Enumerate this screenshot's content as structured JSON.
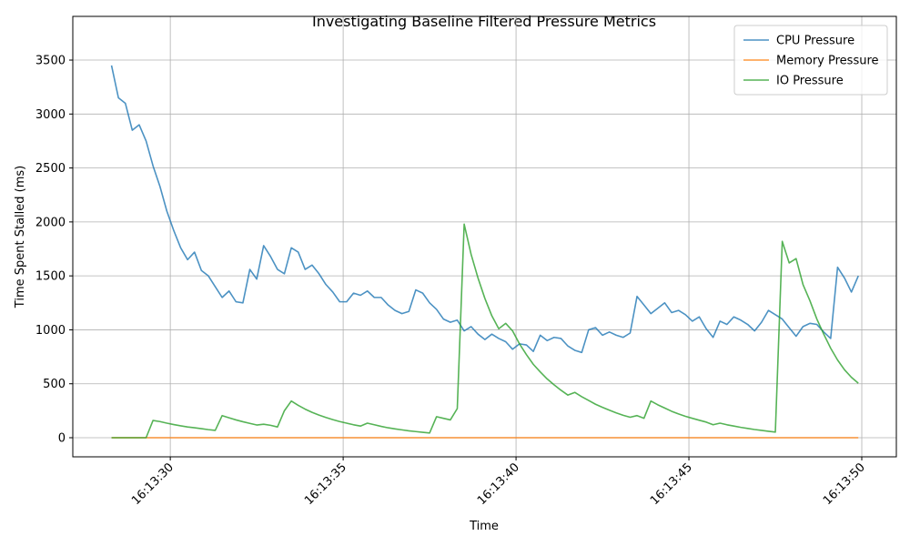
{
  "chart_data": {
    "type": "line",
    "title": "Investigating Baseline Filtered Pressure Metrics",
    "x_label": "Time",
    "y_label": "Time Spent Stalled (ms)",
    "x": [
      28.3,
      28.5,
      28.7,
      28.9,
      29.1,
      29.3,
      29.5,
      29.7,
      29.9,
      30.1,
      30.3,
      30.5,
      30.7,
      30.9,
      31.1,
      31.3,
      31.5,
      31.7,
      31.9,
      32.1,
      32.3,
      32.5,
      32.7,
      32.9,
      33.1,
      33.3,
      33.5,
      33.7,
      33.9,
      34.1,
      34.3,
      34.5,
      34.7,
      34.9,
      35.1,
      35.3,
      35.5,
      35.7,
      35.9,
      36.1,
      36.3,
      36.5,
      36.7,
      36.9,
      37.1,
      37.3,
      37.5,
      37.7,
      37.9,
      38.1,
      38.3,
      38.5,
      38.7,
      38.9,
      39.1,
      39.3,
      39.5,
      39.7,
      39.9,
      40.1,
      40.3,
      40.5,
      40.7,
      40.9,
      41.1,
      41.3,
      41.5,
      41.7,
      41.9,
      42.1,
      42.3,
      42.5,
      42.7,
      42.9,
      43.1,
      43.3,
      43.5,
      43.7,
      43.9,
      44.1,
      44.3,
      44.5,
      44.7,
      44.9,
      45.1,
      45.3,
      45.5,
      45.7,
      45.9,
      46.1,
      46.3,
      46.5,
      46.7,
      46.9,
      47.1,
      47.3,
      47.5,
      47.7,
      47.9,
      48.1,
      48.3,
      48.5,
      48.7,
      48.9,
      49.1,
      49.3,
      49.5,
      49.7,
      49.9
    ],
    "series": [
      {
        "name": "CPU Pressure",
        "color": "#1f77b4",
        "values": [
          3450,
          3150,
          3100,
          2850,
          2900,
          2750,
          2520,
          2330,
          2100,
          1920,
          1760,
          1650,
          1720,
          1550,
          1500,
          1400,
          1300,
          1360,
          1260,
          1250,
          1560,
          1470,
          1780,
          1680,
          1560,
          1520,
          1760,
          1720,
          1560,
          1600,
          1520,
          1420,
          1350,
          1260,
          1260,
          1340,
          1320,
          1360,
          1300,
          1300,
          1230,
          1180,
          1150,
          1170,
          1370,
          1340,
          1250,
          1190,
          1100,
          1070,
          1090,
          990,
          1030,
          960,
          910,
          960,
          920,
          890,
          820,
          870,
          860,
          800,
          950,
          900,
          930,
          920,
          850,
          810,
          790,
          1000,
          1020,
          950,
          980,
          950,
          930,
          970,
          1310,
          1230,
          1150,
          1200,
          1250,
          1160,
          1180,
          1140,
          1080,
          1120,
          1010,
          930,
          1080,
          1050,
          1120,
          1090,
          1050,
          990,
          1070,
          1180,
          1140,
          1100,
          1020,
          940,
          1030,
          1060,
          1050,
          980,
          920,
          1580,
          1480,
          1350,
          1500
        ]
      },
      {
        "name": "Memory Pressure",
        "color": "#ff7f0e",
        "values": [
          0,
          0,
          0,
          0,
          0,
          0,
          0,
          0,
          0,
          0,
          0,
          0,
          0,
          0,
          0,
          0,
          0,
          0,
          0,
          0,
          0,
          0,
          0,
          0,
          0,
          0,
          0,
          0,
          0,
          0,
          0,
          0,
          0,
          0,
          0,
          0,
          0,
          0,
          0,
          0,
          0,
          0,
          0,
          0,
          0,
          0,
          0,
          0,
          0,
          0,
          0,
          0,
          0,
          0,
          0,
          0,
          0,
          0,
          0,
          0,
          0,
          0,
          0,
          0,
          0,
          0,
          0,
          0,
          0,
          0,
          0,
          0,
          0,
          0,
          0,
          0,
          0,
          0,
          0,
          0,
          0,
          0,
          0,
          0,
          0,
          0,
          0,
          0,
          0,
          0,
          0,
          0,
          0,
          0,
          0,
          0,
          0,
          0,
          0,
          0,
          0,
          0,
          0,
          0,
          0,
          0,
          0,
          0,
          0
        ]
      },
      {
        "name": "IO Pressure",
        "color": "#2ca02c",
        "values": [
          0,
          0,
          0,
          0,
          0,
          0,
          160,
          150,
          135,
          122,
          110,
          100,
          92,
          84,
          75,
          68,
          205,
          185,
          165,
          148,
          133,
          118,
          125,
          115,
          100,
          250,
          340,
          300,
          265,
          235,
          210,
          188,
          168,
          150,
          135,
          120,
          108,
          135,
          120,
          105,
          92,
          82,
          73,
          64,
          57,
          50,
          44,
          195,
          180,
          165,
          270,
          1980,
          1700,
          1480,
          1290,
          1130,
          1010,
          1060,
          990,
          870,
          770,
          680,
          610,
          545,
          490,
          440,
          395,
          420,
          380,
          345,
          310,
          282,
          255,
          230,
          208,
          190,
          205,
          180,
          340,
          305,
          275,
          245,
          220,
          198,
          180,
          162,
          145,
          120,
          135,
          120,
          108,
          96,
          86,
          76,
          68,
          60,
          52,
          1820,
          1620,
          1660,
          1420,
          1270,
          1100,
          960,
          830,
          720,
          630,
          560,
          505
        ]
      }
    ],
    "alpha": 0.8,
    "xlim": [
      27.18,
      51.0
    ],
    "xticks": [
      {
        "value": 30,
        "label": "16:13:30"
      },
      {
        "value": 35,
        "label": "16:13:35"
      },
      {
        "value": 40,
        "label": "16:13:40"
      },
      {
        "value": 45,
        "label": "16:13:45"
      },
      {
        "value": 50,
        "label": "16:13:50"
      }
    ],
    "ylim": [
      -177,
      3905
    ],
    "yticks": [
      0,
      500,
      1000,
      1500,
      2000,
      2500,
      3000,
      3500
    ],
    "grid": true,
    "legend": "upper right"
  }
}
